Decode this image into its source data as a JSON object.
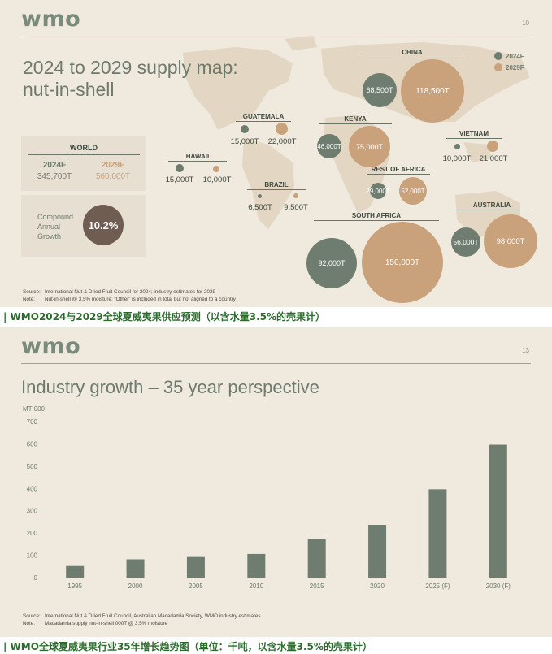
{
  "slide1": {
    "logo": "wmo",
    "page_number": "10",
    "title_line1": "2024 to 2029 supply map:",
    "title_line2": "nut-in-shell",
    "legend": [
      {
        "label": "2024F",
        "color": "#6e7d6f"
      },
      {
        "label": "2029F",
        "color": "#c9a27c"
      }
    ],
    "colors": {
      "y2024": "#6e7d6f",
      "y2029": "#c9a27c",
      "cagr": "#6f5d52"
    },
    "regions": {
      "china": {
        "name": "CHINA",
        "v2024": "68,500T",
        "v2029": "118,500T"
      },
      "guatemala": {
        "name": "GUATEMALA",
        "v2024": "15,000T",
        "v2029": "22,000T"
      },
      "kenya": {
        "name": "KENYA",
        "v2024": "46,000T",
        "v2029": "75,000T"
      },
      "vietnam": {
        "name": "VIETNAM",
        "v2024": "10,000T",
        "v2029": "21,000T"
      },
      "hawaii": {
        "name": "HAWAII",
        "v2024": "15,000T",
        "v2029": "10,000T"
      },
      "rest_of_africa": {
        "name": "REST OF AFRICA",
        "v2024": "29,000T",
        "v2029": "52,000T"
      },
      "brazil": {
        "name": "BRAZIL",
        "v2024": "6,500T",
        "v2029": "9,500T"
      },
      "south_africa": {
        "name": "SOUTH AFRICA",
        "v2024": "92,000T",
        "v2029": "150,000T"
      },
      "australia": {
        "name": "AUSTRALIA",
        "v2024": "56,000T",
        "v2029": "98,000T"
      }
    },
    "world": {
      "title": "WORLD",
      "label_2024": "2024F",
      "value_2024": "345,700T",
      "label_2029": "2029F",
      "value_2029": "560,000T"
    },
    "cagr": {
      "label_line1": "Compound",
      "label_line2": "Annual",
      "label_line3": "Growth",
      "value": "10.2%"
    },
    "source_key": "Source:",
    "source_text": "International Nut & Dried Fruit Council for 2024; industry estimates for 2029",
    "note_key": "Note:",
    "note_text": "Nut-in-shell @ 3.5% moisture; “Other” is included in total but not aligned to a country"
  },
  "caption1": "| WMO2024与2029全球夏威夷果供应预测（以含水量3.5%的壳果计）",
  "slide2": {
    "logo": "wmo",
    "page_number": "13",
    "title": "Industry growth – 35 year perspective",
    "source_key": "Source:",
    "source_text": "International Nut & Dried Fruit Council, Australian Macadamia Society, WMO industry estimates",
    "note_key": "Note:",
    "note_text": "Macadamia supply nut-in-shell 000T @ 3.5% moisture"
  },
  "chart_data": {
    "type": "bar",
    "ylabel": "MT 000",
    "categories": [
      "1995",
      "2000",
      "2005",
      "2010",
      "2015",
      "2020",
      "2025 (F)",
      "2030 (F)"
    ],
    "values": [
      52,
      82,
      96,
      106,
      175,
      237,
      396,
      596
    ],
    "ylim": [
      0,
      700
    ],
    "yticks": [
      "0",
      "100",
      "200",
      "300",
      "400",
      "500",
      "600",
      "700"
    ],
    "grid": false,
    "bar_color": "#6e7d6f"
  },
  "caption2": "| WMO全球夏威夷果行业35年增长趋势图（单位：千吨，以含水量3.5%的壳果计）"
}
